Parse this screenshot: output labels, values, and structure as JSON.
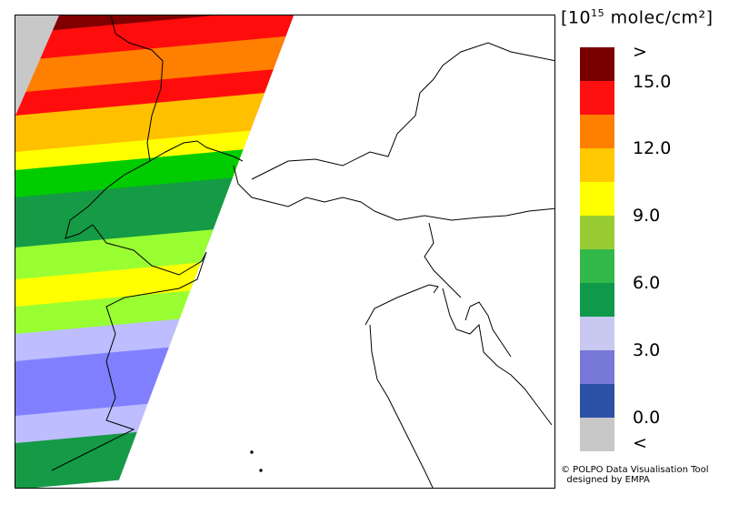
{
  "legend": {
    "title_prefix": "[10",
    "title_exp": "15",
    "title_suffix": " molec/cm²]",
    "colors": [
      "#7a0000",
      "#ff1010",
      "#ff8000",
      "#ffc800",
      "#ffff00",
      "#99cc33",
      "#33b84a",
      "#0e9a4a",
      "#c8c8f0",
      "#7878d8",
      "#2c52a8",
      "#c8c8c8"
    ],
    "labels": [
      ">",
      "15.0",
      "12.0",
      "9.0",
      "6.0",
      "3.0",
      "0.0",
      "<"
    ]
  },
  "credit": {
    "line1": "© POLPO Data Visualisation Tool",
    "line2": "  designed by EMPA"
  },
  "swath_colors": {
    "dark_red": "#800000",
    "red": "#ff0d0d",
    "orange": "#ff8000",
    "amber": "#ffc000",
    "yellow": "#ffff00",
    "green": "#00cc00",
    "dark_green": "#159a45",
    "lime": "#99ff33",
    "light_lavender": "#bdbdff",
    "blue_violet": "#8080ff",
    "grey": "#c8c8c8"
  }
}
